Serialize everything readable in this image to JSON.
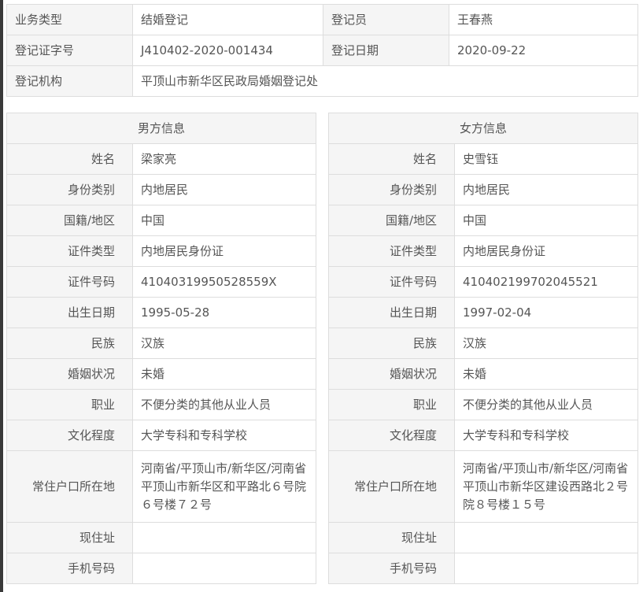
{
  "record": {
    "business_type_label": "业务类型",
    "business_type": "结婚登记",
    "registrar_label": "登记员",
    "registrar": "王春燕",
    "cert_no_label": "登记证字号",
    "cert_no": "J410402-2020-001434",
    "reg_date_label": "登记日期",
    "reg_date": "2020-09-22",
    "office_label": "登记机构",
    "office": "平顶山市新华区民政局婚姻登记处"
  },
  "labels": [
    "姓名",
    "身份类别",
    "国籍/地区",
    "证件类型",
    "证件号码",
    "出生日期",
    "民族",
    "婚姻状况",
    "职业",
    "文化程度",
    "常住户口所在地",
    "现住址",
    "手机号码"
  ],
  "male": {
    "title": "男方信息",
    "values": [
      "梁家亮",
      "内地居民",
      "中国",
      "内地居民身份证",
      "41040319950528559X",
      "1995-05-28",
      "汉族",
      "未婚",
      "不便分类的其他从业人员",
      "大学专科和专科学校",
      "河南省/平顶山市/新华区/河南省平顶山市新华区和平路北６号院６号楼７２号",
      "",
      ""
    ]
  },
  "female": {
    "title": "女方信息",
    "values": [
      "史雪钰",
      "内地居民",
      "中国",
      "内地居民身份证",
      "410402199702045521",
      "1997-02-04",
      "汉族",
      "未婚",
      "不便分类的其他从业人员",
      "大学专科和专科学校",
      "河南省/平顶山市/新华区/河南省平顶山市新华区建设西路北２号院８号楼１５号",
      "",
      ""
    ]
  }
}
